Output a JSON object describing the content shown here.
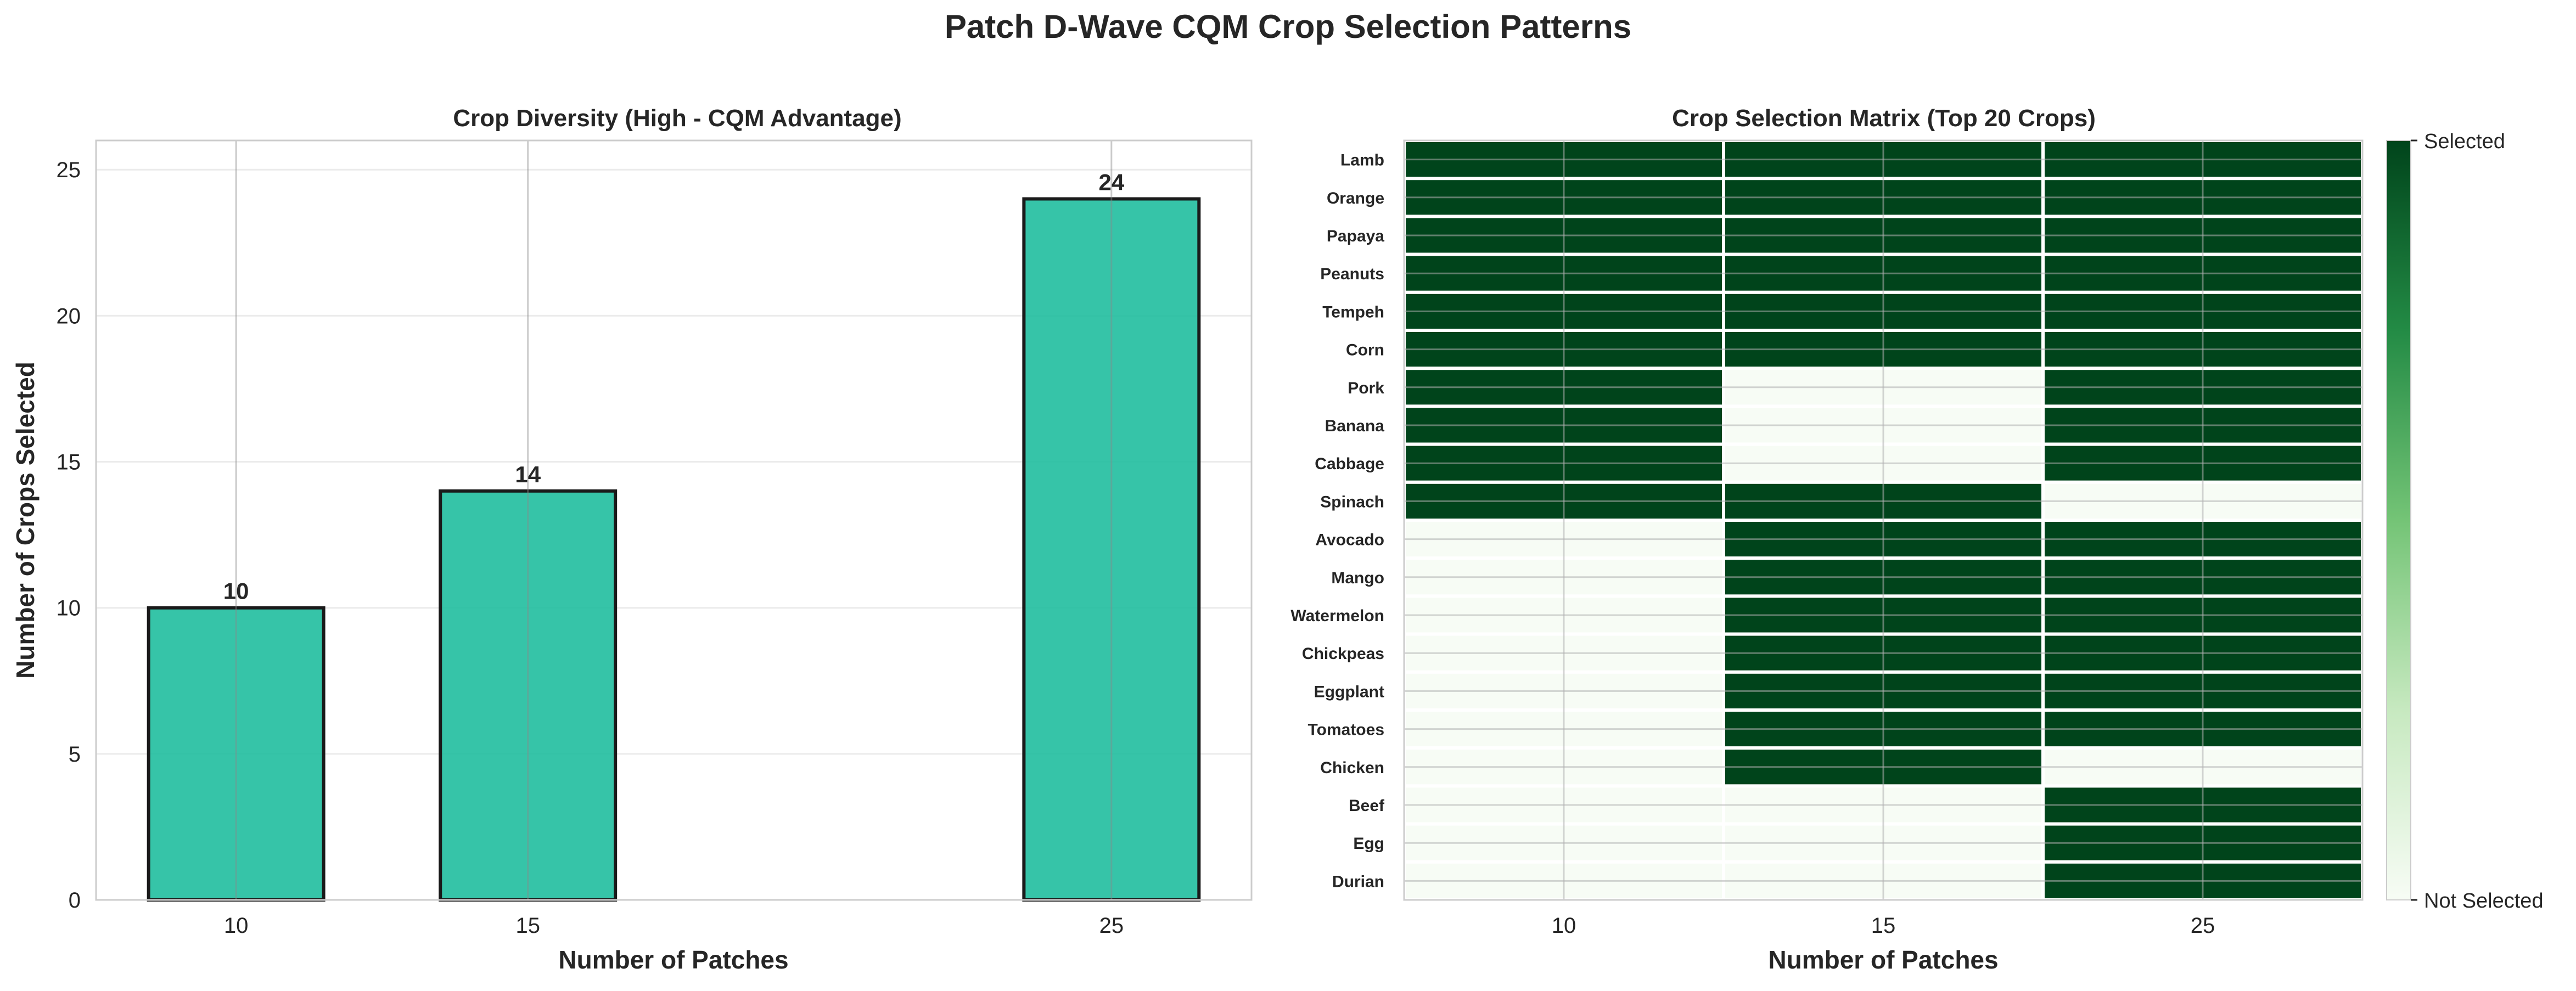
{
  "figure": {
    "title": "Patch D-Wave CQM Crop Selection Patterns"
  },
  "chart_data": [
    {
      "type": "bar",
      "title": "Crop Diversity (High - CQM Advantage)",
      "xlabel": "Number of Patches",
      "ylabel": "Number of Crops Selected",
      "x": [
        10,
        15,
        25
      ],
      "values": [
        10,
        14,
        24
      ],
      "data_labels": [
        "10",
        "14",
        "24"
      ],
      "xlim": [
        7.6,
        27.4
      ],
      "ylim": [
        0,
        26
      ],
      "yticks": [
        0,
        5,
        10,
        15,
        20,
        25
      ],
      "xticks": [
        10,
        15,
        25
      ],
      "grid": true,
      "bar_color": "#1abc9c",
      "edge_color": "#1a1a1a"
    },
    {
      "type": "heatmap",
      "title": "Crop Selection Matrix (Top 20 Crops)",
      "xlabel": "Number of Patches",
      "columns": [
        "10",
        "15",
        "25"
      ],
      "rows": [
        "Lamb",
        "Orange",
        "Papaya",
        "Peanuts",
        "Tempeh",
        "Corn",
        "Pork",
        "Banana",
        "Cabbage",
        "Spinach",
        "Avocado",
        "Mango",
        "Watermelon",
        "Chickpeas",
        "Eggplant",
        "Tomatoes",
        "Chicken",
        "Beef",
        "Egg",
        "Durian"
      ],
      "matrix": [
        [
          1,
          1,
          1
        ],
        [
          1,
          1,
          1
        ],
        [
          1,
          1,
          1
        ],
        [
          1,
          1,
          1
        ],
        [
          1,
          1,
          1
        ],
        [
          1,
          1,
          1
        ],
        [
          1,
          0,
          1
        ],
        [
          1,
          0,
          1
        ],
        [
          1,
          0,
          1
        ],
        [
          1,
          1,
          0
        ],
        [
          0,
          1,
          1
        ],
        [
          0,
          1,
          1
        ],
        [
          0,
          1,
          1
        ],
        [
          0,
          1,
          1
        ],
        [
          0,
          1,
          1
        ],
        [
          0,
          1,
          1
        ],
        [
          0,
          1,
          0
        ],
        [
          0,
          0,
          1
        ],
        [
          0,
          0,
          1
        ],
        [
          0,
          0,
          1
        ]
      ],
      "colorbar": {
        "labels": [
          "Not Selected",
          "Selected"
        ],
        "low_color": "#f7fcf5",
        "high_color": "#00441b"
      }
    }
  ]
}
